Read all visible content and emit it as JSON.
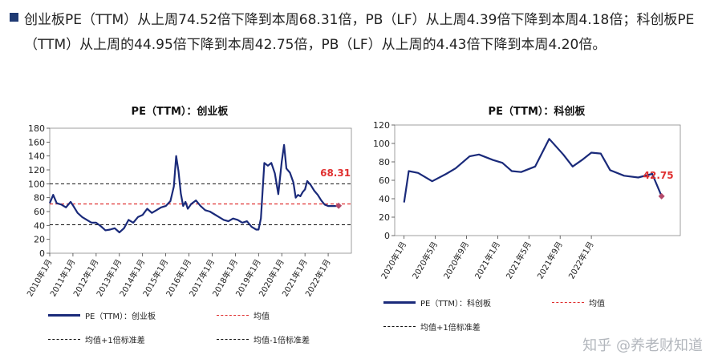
{
  "summary": {
    "text": "创业板PE（TTM）从上周74.52倍下降到本周68.31倍，PB（LF）从上周4.39倍下降到本周4.18倍；科创板PE（TTM）从上周的44.95倍下降到本周42.75倍，PB（LF）从上周的4.43倍下降到本周4.20倍。"
  },
  "watermark": "知乎 @养老财知道",
  "colors": {
    "series": "#1a2a7a",
    "mean": "#e03030",
    "band": "#111111",
    "label": "#e03030"
  },
  "chart_data": [
    {
      "type": "line",
      "title": "PE（TTM）：创业板",
      "ylim": [
        0,
        180
      ],
      "yticks": [
        0,
        20,
        40,
        60,
        80,
        100,
        120,
        140,
        160,
        180
      ],
      "xlim": [
        2010.0,
        2023.0
      ],
      "xticks": [
        "2010年1月",
        "2011年1月",
        "2012年1月",
        "2013年1月",
        "2014年1月",
        "2015年1月",
        "2016年1月",
        "2017年1月",
        "2018年1月",
        "2019年1月",
        "2020年1月",
        "2021年1月",
        "2022年1月"
      ],
      "series": [
        {
          "name": "PE（TTM）：创业板",
          "x": [
            2010.0,
            2010.15,
            2010.3,
            2010.5,
            2010.7,
            2010.9,
            2011.0,
            2011.2,
            2011.4,
            2011.6,
            2011.8,
            2012.0,
            2012.2,
            2012.4,
            2012.6,
            2012.8,
            2013.0,
            2013.2,
            2013.4,
            2013.6,
            2013.8,
            2014.0,
            2014.2,
            2014.4,
            2014.6,
            2014.8,
            2015.0,
            2015.2,
            2015.35,
            2015.45,
            2015.55,
            2015.65,
            2015.75,
            2015.85,
            2015.95,
            2016.1,
            2016.3,
            2016.5,
            2016.7,
            2016.9,
            2017.1,
            2017.3,
            2017.5,
            2017.7,
            2017.9,
            2018.1,
            2018.3,
            2018.5,
            2018.7,
            2018.9,
            2019.0,
            2019.1,
            2019.25,
            2019.4,
            2019.55,
            2019.7,
            2019.85,
            2020.0,
            2020.1,
            2020.2,
            2020.35,
            2020.5,
            2020.6,
            2020.7,
            2020.8,
            2020.9,
            2021.0,
            2021.1,
            2021.25,
            2021.4,
            2021.55,
            2021.7,
            2021.85,
            2022.0,
            2022.1,
            2022.2,
            2022.3,
            2022.45
          ],
          "values": [
            72,
            84,
            72,
            70,
            66,
            74,
            69,
            58,
            52,
            48,
            44,
            44,
            39,
            33,
            34,
            36,
            30,
            36,
            48,
            44,
            52,
            55,
            64,
            58,
            62,
            66,
            68,
            75,
            96,
            140,
            118,
            86,
            68,
            74,
            64,
            71,
            76,
            68,
            62,
            60,
            56,
            52,
            48,
            46,
            50,
            48,
            44,
            46,
            38,
            34,
            34,
            50,
            130,
            126,
            130,
            115,
            85,
            132,
            156,
            122,
            116,
            102,
            80,
            84,
            82,
            88,
            92,
            104,
            98,
            90,
            84,
            76,
            70,
            68,
            68,
            68,
            68,
            68.31
          ]
        }
      ],
      "mean": 71,
      "upper_band": 100,
      "lower_band": 41,
      "last_label": "68.31",
      "legend": [
        {
          "label": "PE（TTM）：创业板",
          "style": "solid"
        },
        {
          "label": "均值",
          "style": "red-dashed"
        },
        {
          "label": "均值+1倍标准差",
          "style": "black-dashed"
        },
        {
          "label": "均值-1倍标准差",
          "style": "black-dashed"
        }
      ]
    },
    {
      "type": "line",
      "title": "PE（TTM）：科创板",
      "ylim": [
        0,
        120
      ],
      "yticks": [
        0,
        20,
        40,
        60,
        80,
        100,
        120
      ],
      "xlim": [
        2019.9,
        2022.95
      ],
      "xticks": [
        "2020年1月",
        "2020年5月",
        "2020年9月",
        "2021年1月",
        "2021年5月",
        "2021年9月",
        "2022年1月"
      ],
      "series": [
        {
          "name": "PE（TTM）：科创板",
          "x": [
            2020.0,
            2020.05,
            2020.15,
            2020.3,
            2020.45,
            2020.55,
            2020.7,
            2020.8,
            2020.95,
            2021.05,
            2021.15,
            2021.25,
            2021.4,
            2021.55,
            2021.7,
            2021.8,
            2021.9,
            2022.0,
            2022.1,
            2022.2,
            2022.35,
            2022.5,
            2022.65,
            2022.75
          ],
          "values": [
            36,
            70,
            68,
            59,
            67,
            73,
            86,
            88,
            82,
            79,
            70,
            69,
            75,
            105,
            88,
            75,
            82,
            90,
            89,
            71,
            65,
            63,
            67,
            42.75
          ]
        }
      ],
      "last_label": "42.75",
      "legend": [
        {
          "label": "PE（TTM）：科创板",
          "style": "solid"
        },
        {
          "label": "均值",
          "style": "red-dashed"
        },
        {
          "label": "均值+1倍标准差",
          "style": "black-dashed"
        }
      ]
    }
  ]
}
